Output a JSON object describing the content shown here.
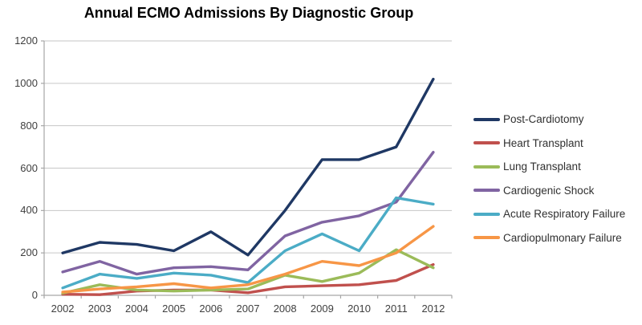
{
  "chart_data": {
    "type": "line",
    "title": "Annual ECMO Admissions By Diagnostic Group",
    "xlabel": "",
    "ylabel": "",
    "ylim": [
      0,
      1200
    ],
    "y_ticks": [
      0,
      200,
      400,
      600,
      800,
      1000,
      1200
    ],
    "grid": "horizontal",
    "legend_position": "right",
    "categories": [
      "2002",
      "2003",
      "2004",
      "2005",
      "2006",
      "2007",
      "2008",
      "2009",
      "2010",
      "2011",
      "2012"
    ],
    "series": [
      {
        "name": "Post-Cardiotomy",
        "color": "#1f3864",
        "values": [
          200,
          250,
          240,
          210,
          300,
          190,
          400,
          640,
          640,
          700,
          1020
        ]
      },
      {
        "name": "Heart Transplant",
        "color": "#c0504d",
        "values": [
          5,
          3,
          20,
          25,
          25,
          12,
          40,
          45,
          50,
          70,
          145
        ]
      },
      {
        "name": "Lung Transplant",
        "color": "#9bbb59",
        "values": [
          10,
          50,
          25,
          20,
          25,
          30,
          95,
          65,
          105,
          215,
          130
        ]
      },
      {
        "name": "Cardiogenic Shock",
        "color": "#8064a2",
        "values": [
          110,
          160,
          100,
          130,
          135,
          120,
          280,
          345,
          375,
          440,
          675
        ]
      },
      {
        "name": "Acute Respiratory Failure",
        "color": "#4bacc6",
        "values": [
          35,
          100,
          80,
          105,
          95,
          60,
          210,
          290,
          210,
          460,
          430
        ]
      },
      {
        "name": "Cardiopulmonary Failure",
        "color": "#f79646",
        "values": [
          15,
          30,
          40,
          55,
          35,
          50,
          100,
          160,
          140,
          200,
          325
        ]
      }
    ],
    "axis_color": "#a6a6a6",
    "gridline_color": "#c6c6c6"
  }
}
